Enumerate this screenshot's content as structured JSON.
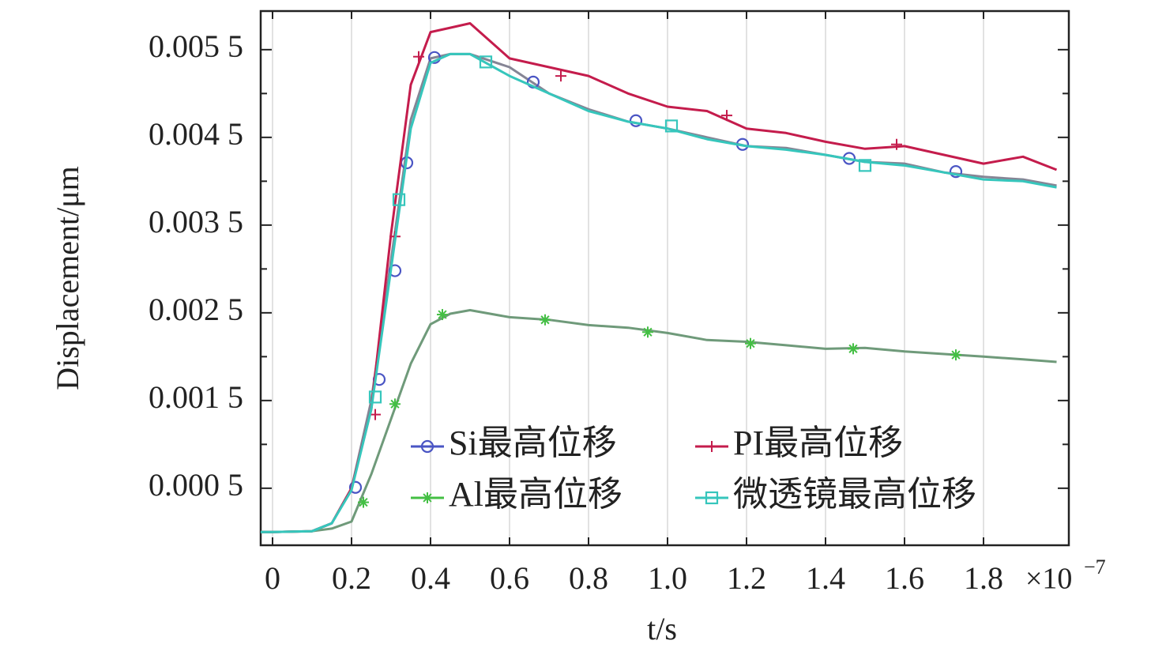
{
  "chart_data": {
    "type": "line",
    "xlabel": "t/s",
    "ylabel": "Displacement/μm",
    "x_multiplier": "×10",
    "x_multiplier_exp": "−7",
    "x": [
      -0.03,
      0,
      0.1,
      0.15,
      0.2,
      0.25,
      0.3,
      0.35,
      0.4,
      0.45,
      0.5,
      0.6,
      0.7,
      0.8,
      0.9,
      1.0,
      1.1,
      1.2,
      1.3,
      1.4,
      1.5,
      1.6,
      1.7,
      1.8,
      1.9,
      1.985
    ],
    "series": [
      {
        "name": "Si最高位移",
        "color": "#4a55c4",
        "line_color": "#858595",
        "marker": "circle",
        "values": [
          0,
          0,
          1e-05,
          0.0001,
          0.0005,
          0.0015,
          0.0031,
          0.0047,
          0.0054,
          0.00545,
          0.00545,
          0.0053,
          0.005,
          0.00482,
          0.00468,
          0.0046,
          0.0045,
          0.0044,
          0.00438,
          0.0043,
          0.00422,
          0.0042,
          0.0041,
          0.00405,
          0.00402,
          0.00395
        ],
        "markers": {
          "x": [
            0.21,
            0.27,
            0.31,
            0.34,
            0.41,
            0.66,
            0.92,
            1.19,
            1.46,
            1.73
          ],
          "values": [
            0.00051,
            0.00174,
            0.00298,
            0.00421,
            0.00541,
            0.00513,
            0.00469,
            0.00442,
            0.00426,
            0.00411
          ]
        }
      },
      {
        "name": "PI最高位移",
        "color": "#c41c4c",
        "line_color": "#c41c4c",
        "marker": "plus",
        "values": [
          0,
          0,
          1e-05,
          0.0001,
          0.0005,
          0.0014,
          0.0034,
          0.0051,
          0.0057,
          0.00575,
          0.0058,
          0.0054,
          0.0053,
          0.0052,
          0.005,
          0.00485,
          0.0048,
          0.0046,
          0.00455,
          0.00445,
          0.00437,
          0.0044,
          0.0043,
          0.0042,
          0.00428,
          0.00413
        ],
        "markers": {
          "x": [
            0.26,
            0.31,
            0.37,
            0.73,
            1.15,
            1.58
          ],
          "values": [
            0.00134,
            0.00337,
            0.00542,
            0.0052,
            0.00475,
            0.00442
          ]
        }
      },
      {
        "name": "Al最高位移",
        "color": "#44bf44",
        "line_color": "#6f9a7a",
        "marker": "star",
        "values": [
          0,
          0,
          1e-05,
          4e-05,
          0.00012,
          0.00066,
          0.00129,
          0.00192,
          0.00237,
          0.00249,
          0.00253,
          0.00245,
          0.00242,
          0.00236,
          0.00233,
          0.00227,
          0.00219,
          0.00217,
          0.00213,
          0.00209,
          0.0021,
          0.00206,
          0.00203,
          0.002,
          0.00197,
          0.00194
        ],
        "markers": {
          "x": [
            0.23,
            0.31,
            0.43,
            0.69,
            0.95,
            1.21,
            1.47,
            1.73
          ],
          "values": [
            0.00034,
            0.00146,
            0.00248,
            0.00242,
            0.00228,
            0.00215,
            0.00209,
            0.00202
          ]
        }
      },
      {
        "name": "微透镜最高位移",
        "color": "#36c6bc",
        "line_color": "#36c6bc",
        "marker": "square",
        "values": [
          0,
          0,
          1e-05,
          0.0001,
          0.00048,
          0.0014,
          0.003,
          0.0046,
          0.00535,
          0.00545,
          0.00545,
          0.0052,
          0.005,
          0.0048,
          0.00468,
          0.0046,
          0.00448,
          0.0044,
          0.00436,
          0.0043,
          0.00422,
          0.00418,
          0.0041,
          0.00402,
          0.004,
          0.00393
        ],
        "markers": {
          "x": [
            0.26,
            0.32,
            0.54,
            1.01,
            1.5
          ],
          "values": [
            0.00154,
            0.00379,
            0.00536,
            0.00463,
            0.00418
          ]
        }
      }
    ],
    "xlim": [
      -0.03,
      2.016
    ],
    "xticks": [
      0,
      0.2,
      0.4,
      0.6,
      0.8,
      {
        "value": 1,
        "label": "1.0"
      },
      1.2,
      1.4,
      1.6,
      1.8
    ],
    "ylim": [
      -0.00015,
      0.00594
    ],
    "yticks": [
      {
        "value": 0.0005,
        "label": "0.000 5"
      },
      {
        "value": 0.0015,
        "label": "0.001 5"
      },
      {
        "value": 0.0025,
        "label": "0.002 5"
      },
      {
        "value": 0.0035,
        "label": "0.003 5"
      },
      {
        "value": 0.0045,
        "label": "0.004 5"
      },
      {
        "value": 0.0055,
        "label": "0.005 5"
      }
    ],
    "yticks_minor": [
      0.001,
      0.002,
      0.003,
      0.004,
      0.005
    ],
    "grid": "x",
    "legend": "lower right"
  }
}
